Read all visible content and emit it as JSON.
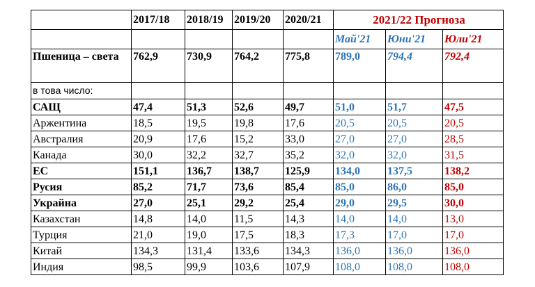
{
  "header": {
    "years": [
      "2017/18",
      "2018/19",
      "2019/20",
      "2020/21"
    ],
    "forecast": "2021/22 Прогноза",
    "months": [
      "Май'21",
      "Юни'21",
      "Юли'21"
    ]
  },
  "table": {
    "rows": [
      {
        "label": "Пшеница – света",
        "bold": true,
        "values": [
          "762,9",
          "730,9",
          "764,2",
          "775,8",
          "789,0",
          "794,4",
          "792,4"
        ]
      },
      {
        "label": "в това число:",
        "bold": false,
        "values": [
          null,
          null,
          null,
          null,
          null,
          null,
          null
        ]
      },
      {
        "label": "САЩ",
        "bold": true,
        "values": [
          "47,4",
          "51,3",
          "52,6",
          "49,7",
          "51,0",
          "51,7",
          "47,5"
        ]
      },
      {
        "label": "Аржентина",
        "bold": false,
        "values": [
          "18,5",
          "19,5",
          "19,8",
          "17,6",
          "20,5",
          "20,5",
          "20,5"
        ]
      },
      {
        "label": "Австралия",
        "bold": false,
        "values": [
          "20,9",
          "17,6",
          "15,2",
          "33,0",
          "27,0",
          "27,0",
          "28,5"
        ]
      },
      {
        "label": "Канада",
        "bold": false,
        "values": [
          "30,0",
          "32,2",
          "32,7",
          "35,2",
          "32,0",
          "32,0",
          "31,5"
        ]
      },
      {
        "label": "ЕС",
        "bold": true,
        "values": [
          "151,1",
          "136,7",
          "138,7",
          "125,9",
          "134,0",
          "137,5",
          "138,2"
        ]
      },
      {
        "label": "Русия",
        "bold": true,
        "values": [
          "85,2",
          "71,7",
          "73,6",
          "85,4",
          "85,0",
          "86,0",
          "85,0"
        ]
      },
      {
        "label": "Украйна",
        "bold": true,
        "values": [
          "27,0",
          "25,1",
          "29,2",
          "25,4",
          "29,0",
          "29,5",
          "30,0"
        ]
      },
      {
        "label": "Казахстан",
        "bold": false,
        "values": [
          "14,8",
          "14,0",
          "11,5",
          "14,3",
          "14,0",
          "14,0",
          "13,0"
        ]
      },
      {
        "label": "Турция",
        "bold": false,
        "values": [
          "21,0",
          "19,0",
          "17,5",
          "18,3",
          "17,3",
          "17,0",
          "17,0"
        ]
      },
      {
        "label": "Китай",
        "bold": false,
        "values": [
          "134,3",
          "131,4",
          "133,6",
          "134,3",
          "136,0",
          "136,0",
          "136,0"
        ]
      },
      {
        "label": "Индия",
        "bold": false,
        "values": [
          "98,5",
          "99,9",
          "103,6",
          "107,9",
          "108,0",
          "108,0",
          "108,0"
        ]
      }
    ]
  }
}
